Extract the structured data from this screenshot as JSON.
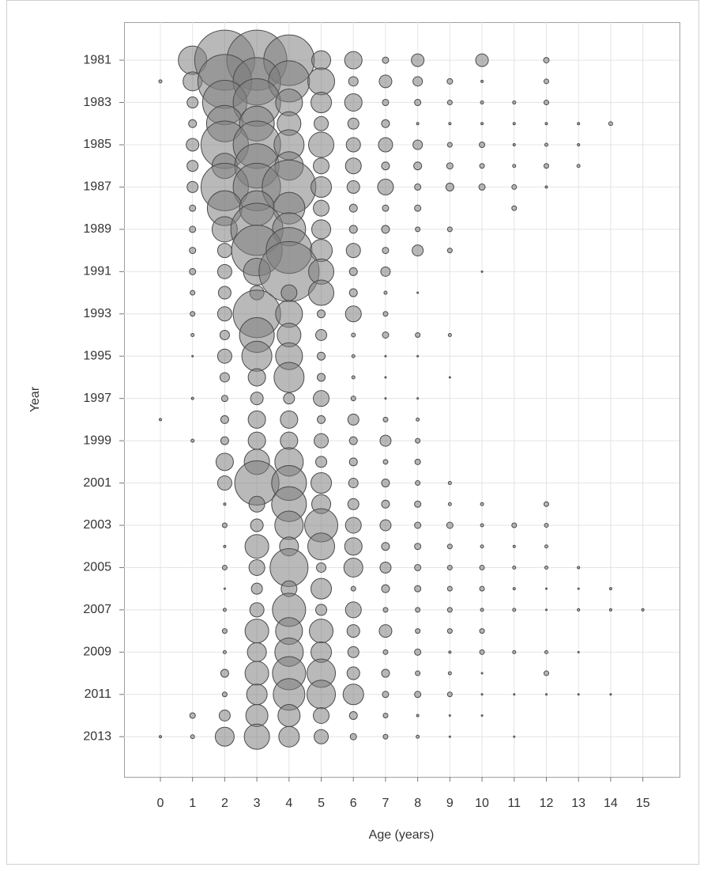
{
  "chart_data": {
    "type": "bubble",
    "x_label": "Age (years)",
    "y_label": "Year",
    "xlim": [
      -1.13,
      16.14
    ],
    "ylim": [
      1979.2,
      2014.9
    ],
    "y_reversed": true,
    "xticks": [
      0,
      1,
      2,
      3,
      4,
      5,
      6,
      7,
      8,
      9,
      10,
      11,
      12,
      13,
      14,
      15
    ],
    "yticks": [
      1981,
      1983,
      1985,
      1987,
      1989,
      1991,
      1993,
      1995,
      1997,
      1999,
      2001,
      2003,
      2005,
      2007,
      2009,
      2011,
      2013
    ],
    "grid": true,
    "color": "#808080",
    "edge_color": "#4a4a4a",
    "rows": [
      {
        "year": 1981,
        "ages": [
          1,
          2,
          3,
          4,
          5,
          6,
          7,
          8,
          10,
          12
        ],
        "sizes": [
          18,
          38,
          38,
          32,
          12,
          11,
          4,
          8,
          8,
          3.5
        ]
      },
      {
        "year": 1982,
        "ages": [
          0,
          1,
          2,
          3,
          4,
          5,
          6,
          7,
          8,
          9,
          10,
          12
        ],
        "sizes": [
          2,
          12,
          34,
          30,
          26,
          17,
          6,
          8,
          6,
          3.5,
          1.5,
          3
        ]
      },
      {
        "year": 1983,
        "ages": [
          1,
          2,
          3,
          4,
          5,
          6,
          7,
          8,
          9,
          10,
          11,
          12
        ],
        "sizes": [
          7,
          28,
          30,
          17,
          13,
          11,
          4,
          4,
          3,
          2,
          2,
          3
        ]
      },
      {
        "year": 1984,
        "ages": [
          1,
          2,
          3,
          4,
          5,
          6,
          7,
          8,
          9,
          10,
          11,
          12,
          13,
          14
        ],
        "sizes": [
          5,
          23,
          22,
          15,
          9,
          7,
          5,
          1.5,
          1.5,
          1.5,
          1.5,
          1.5,
          1.5,
          2.5
        ]
      },
      {
        "year": 1985,
        "ages": [
          1,
          2,
          3,
          4,
          5,
          6,
          7,
          8,
          9,
          10,
          11,
          12,
          13
        ],
        "sizes": [
          8,
          30,
          30,
          19,
          16,
          9,
          9,
          6,
          3,
          3.5,
          1.5,
          2,
          1.5
        ]
      },
      {
        "year": 1986,
        "ages": [
          1,
          2,
          3,
          4,
          5,
          6,
          7,
          8,
          9,
          10,
          11,
          12,
          13
        ],
        "sizes": [
          7,
          16,
          28,
          18,
          10,
          10,
          5,
          5,
          4,
          3,
          2,
          3,
          2
        ]
      },
      {
        "year": 1987,
        "ages": [
          1,
          2,
          3,
          4,
          5,
          6,
          7,
          8,
          9,
          10,
          11,
          12
        ],
        "sizes": [
          7,
          30,
          30,
          34,
          13,
          8,
          10,
          4,
          5,
          4,
          3,
          1.5
        ]
      },
      {
        "year": 1988,
        "ages": [
          1,
          2,
          3,
          4,
          5,
          6,
          7,
          8,
          11
        ],
        "sizes": [
          4,
          22,
          22,
          20,
          10,
          5,
          4,
          4,
          3
        ]
      },
      {
        "year": 1989,
        "ages": [
          1,
          2,
          3,
          4,
          5,
          6,
          7,
          8,
          9
        ],
        "sizes": [
          4,
          16,
          33,
          21,
          12,
          5,
          5,
          3,
          3
        ]
      },
      {
        "year": 1990,
        "ages": [
          1,
          2,
          3,
          4,
          5,
          6,
          7,
          8,
          9
        ],
        "sizes": [
          4,
          9,
          32,
          29,
          14,
          9,
          4,
          7,
          3
        ]
      },
      {
        "year": 1991,
        "ages": [
          1,
          2,
          3,
          4,
          5,
          6,
          7,
          10
        ],
        "sizes": [
          4,
          9,
          17,
          38,
          16,
          5,
          6,
          1
        ]
      },
      {
        "year": 1992,
        "ages": [
          1,
          2,
          3,
          4,
          5,
          6,
          7,
          8
        ],
        "sizes": [
          3,
          8,
          9,
          10,
          16,
          5,
          2,
          1
        ]
      },
      {
        "year": 1993,
        "ages": [
          1,
          2,
          3,
          4,
          5,
          6,
          7
        ],
        "sizes": [
          3,
          9,
          30,
          17,
          5,
          10,
          3
        ]
      },
      {
        "year": 1994,
        "ages": [
          1,
          2,
          3,
          4,
          5,
          6,
          7,
          8,
          9
        ],
        "sizes": [
          2,
          6,
          22,
          15,
          7,
          2.5,
          4,
          3,
          2
        ]
      },
      {
        "year": 1995,
        "ages": [
          1,
          2,
          3,
          4,
          5,
          6,
          7,
          8
        ],
        "sizes": [
          1,
          9,
          19,
          17,
          5,
          2,
          1,
          1
        ]
      },
      {
        "year": 1996,
        "ages": [
          2,
          3,
          4,
          5,
          6,
          7,
          9
        ],
        "sizes": [
          6,
          11,
          19,
          5,
          2,
          1,
          1
        ]
      },
      {
        "year": 1997,
        "ages": [
          1,
          2,
          3,
          4,
          5,
          6,
          7,
          8
        ],
        "sizes": [
          1.5,
          4,
          8,
          7,
          10,
          3,
          1,
          1
        ]
      },
      {
        "year": 1998,
        "ages": [
          0,
          2,
          3,
          4,
          5,
          6,
          7,
          8
        ],
        "sizes": [
          1.5,
          5,
          11,
          11,
          5,
          7,
          3,
          2
        ]
      },
      {
        "year": 1999,
        "ages": [
          1,
          2,
          3,
          4,
          5,
          6,
          7,
          8
        ],
        "sizes": [
          2,
          5,
          11,
          11,
          9,
          5,
          7,
          3
        ]
      },
      {
        "year": 2000,
        "ages": [
          2,
          3,
          4,
          5,
          6,
          7,
          8
        ],
        "sizes": [
          11,
          16,
          18,
          7,
          5,
          3,
          3.5
        ]
      },
      {
        "year": 2001,
        "ages": [
          2,
          3,
          4,
          5,
          6,
          7,
          8,
          9
        ],
        "sizes": [
          9,
          28,
          22,
          13,
          6,
          5,
          3,
          2
        ]
      },
      {
        "year": 2002,
        "ages": [
          2,
          3,
          4,
          5,
          6,
          7,
          8,
          9,
          10,
          12
        ],
        "sizes": [
          1.5,
          10,
          22,
          12,
          7,
          5,
          4,
          2,
          2,
          3
        ]
      },
      {
        "year": 2003,
        "ages": [
          2,
          3,
          4,
          5,
          6,
          7,
          8,
          9,
          10,
          11,
          12
        ],
        "sizes": [
          3,
          8,
          18,
          21,
          10,
          7,
          4,
          4,
          2,
          3,
          2.5
        ]
      },
      {
        "year": 2004,
        "ages": [
          2,
          3,
          4,
          5,
          6,
          7,
          8,
          9,
          10,
          11,
          12
        ],
        "sizes": [
          1.5,
          15,
          12,
          17,
          11,
          5,
          4,
          3,
          2,
          1.5,
          2
        ]
      },
      {
        "year": 2005,
        "ages": [
          2,
          3,
          4,
          5,
          6,
          7,
          8,
          9,
          10,
          11,
          12,
          13
        ],
        "sizes": [
          3,
          10,
          24,
          6,
          12,
          7,
          4,
          3,
          3,
          2,
          2,
          1.5
        ]
      },
      {
        "year": 2006,
        "ages": [
          2,
          3,
          4,
          5,
          6,
          7,
          8,
          9,
          10,
          11,
          12,
          13,
          14
        ],
        "sizes": [
          1,
          7,
          10,
          13,
          3,
          5,
          4,
          3,
          3,
          1.5,
          1,
          1,
          1.5
        ]
      },
      {
        "year": 2007,
        "ages": [
          2,
          3,
          4,
          5,
          6,
          7,
          8,
          9,
          10,
          11,
          12,
          13,
          14,
          15
        ],
        "sizes": [
          2,
          9,
          21,
          7,
          10,
          3,
          3,
          3,
          2,
          2,
          1,
          1.5,
          1.5,
          1.5
        ]
      },
      {
        "year": 2008,
        "ages": [
          2,
          3,
          4,
          5,
          6,
          7,
          8,
          9,
          10
        ],
        "sizes": [
          3,
          15,
          17,
          15,
          8,
          8,
          3,
          3,
          3
        ]
      },
      {
        "year": 2009,
        "ages": [
          2,
          3,
          4,
          5,
          6,
          7,
          8,
          9,
          10,
          11,
          12,
          13
        ],
        "sizes": [
          2,
          12,
          18,
          13,
          7,
          3,
          4,
          1.5,
          3,
          2,
          2,
          1
        ]
      },
      {
        "year": 2010,
        "ages": [
          2,
          3,
          4,
          5,
          6,
          7,
          8,
          9,
          10,
          12
        ],
        "sizes": [
          5,
          15,
          21,
          18,
          8,
          5,
          3,
          2,
          1,
          3
        ]
      },
      {
        "year": 2011,
        "ages": [
          2,
          3,
          4,
          5,
          6,
          7,
          8,
          9,
          10,
          11,
          12,
          13,
          14
        ],
        "sizes": [
          3,
          13,
          20,
          18,
          13,
          4,
          4,
          3,
          1,
          1,
          1,
          1,
          1
        ]
      },
      {
        "year": 2012,
        "ages": [
          1,
          2,
          3,
          4,
          5,
          6,
          7,
          8,
          9,
          10
        ],
        "sizes": [
          3.5,
          7,
          14,
          14,
          10,
          5,
          3,
          1.5,
          1,
          1
        ]
      },
      {
        "year": 2013,
        "ages": [
          0,
          1,
          2,
          3,
          4,
          5,
          6,
          7,
          8,
          9,
          11
        ],
        "sizes": [
          1.5,
          2.5,
          12,
          16,
          13,
          9,
          4,
          3,
          2,
          1,
          1
        ]
      }
    ]
  }
}
